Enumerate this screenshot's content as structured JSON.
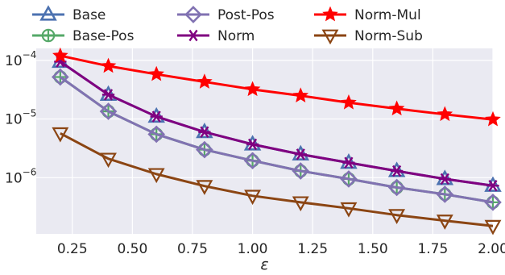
{
  "chart_data": {
    "type": "line",
    "xlabel": "ε",
    "ylabel": "",
    "xlim": [
      0.1,
      2.0
    ],
    "ylim": [
      1.1e-07,
      0.00016
    ],
    "yscale": "log",
    "grid": true,
    "legend_position": "top, above plot (3 columns)",
    "x": [
      0.2,
      0.4,
      0.6,
      0.8,
      1.0,
      1.2,
      1.4,
      1.6,
      1.8,
      2.0
    ],
    "x_ticks": [
      "0.25",
      "0.50",
      "0.75",
      "1.00",
      "1.25",
      "1.50",
      "1.75",
      "2.00"
    ],
    "y_ticks": [
      "10^-4",
      "10^-5",
      "10^-6"
    ],
    "series": [
      {
        "name": "Base",
        "color": "#4c72b0",
        "marker": "triangle-up",
        "values": [
          9.5e-05,
          2.6e-05,
          1.1e-05,
          6e-06,
          3.7e-06,
          2.5e-06,
          1.8e-06,
          1.3e-06,
          9.5e-07,
          7.3e-07
        ]
      },
      {
        "name": "Base-Pos",
        "color": "#55a868",
        "marker": "circle-plus",
        "values": [
          5.2e-05,
          1.35e-05,
          5.5e-06,
          3e-06,
          1.95e-06,
          1.3e-06,
          9.5e-07,
          6.8e-07,
          5.2e-07,
          3.8e-07
        ]
      },
      {
        "name": "Post-Pos",
        "color": "#8172b2",
        "marker": "diamond",
        "values": [
          5.2e-05,
          1.35e-05,
          5.5e-06,
          3e-06,
          1.95e-06,
          1.3e-06,
          9.5e-07,
          6.8e-07,
          5.2e-07,
          3.8e-07
        ]
      },
      {
        "name": "Norm",
        "color": "#800080",
        "marker": "asterisk",
        "values": [
          9.5e-05,
          2.6e-05,
          1.1e-05,
          6e-06,
          3.7e-06,
          2.5e-06,
          1.8e-06,
          1.3e-06,
          9.5e-07,
          7.3e-07
        ]
      },
      {
        "name": "Norm-Mul",
        "color": "#ff0000",
        "marker": "star",
        "values": [
          0.00012,
          8e-05,
          5.8e-05,
          4.3e-05,
          3.2e-05,
          2.5e-05,
          1.9e-05,
          1.5e-05,
          1.2e-05,
          9.8e-06
        ]
      },
      {
        "name": "Norm-Sub",
        "color": "#8b4513",
        "marker": "triangle-down",
        "values": [
          5.7e-06,
          2.1e-06,
          1.15e-06,
          7.2e-07,
          4.9e-07,
          3.8e-07,
          3e-07,
          2.3e-07,
          1.85e-07,
          1.5e-07
        ]
      }
    ]
  }
}
